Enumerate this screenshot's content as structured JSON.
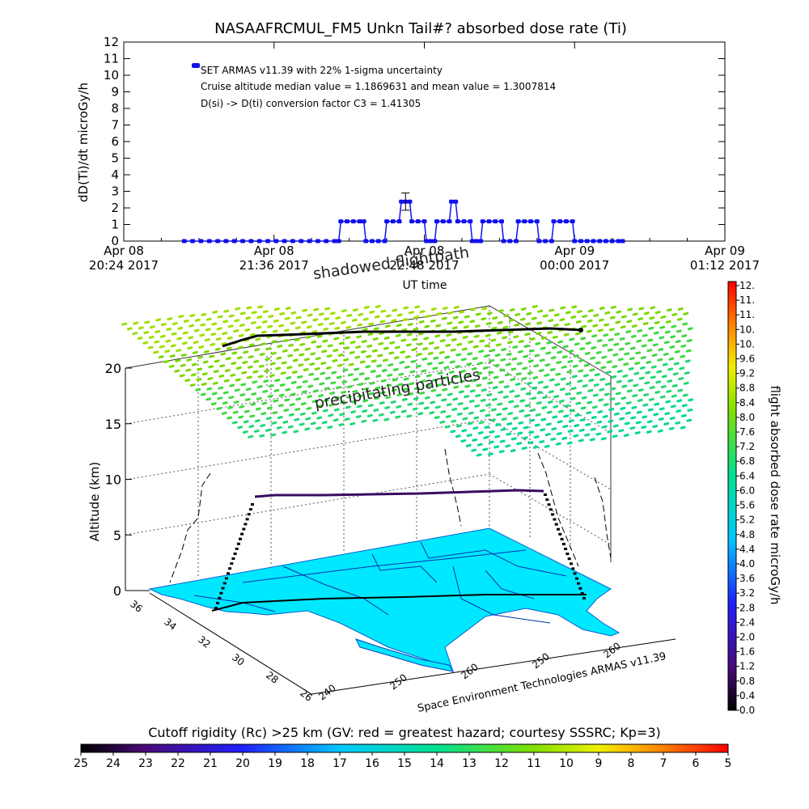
{
  "chart_data": [
    {
      "type": "line",
      "title": "NASAAFRCMUL_FM5 Unkn Tail#? absorbed dose rate (Ti)",
      "xlabel": "UT time",
      "ylabel": "dD(Ti)/dt microGy/h",
      "ylim": [
        0,
        12
      ],
      "yticks": [
        "0",
        "1",
        "2",
        "3",
        "4",
        "5",
        "6",
        "7",
        "8",
        "9",
        "10",
        "11",
        "12"
      ],
      "xticks": [
        {
          "t": 0,
          "line1": "Apr 08",
          "line2": "20:24 2017"
        },
        {
          "t": 72,
          "line1": "Apr 08",
          "line2": "21:36 2017"
        },
        {
          "t": 144,
          "line1": "Apr 08",
          "line2": "22:48 2017"
        },
        {
          "t": 216,
          "line1": "Apr 09",
          "line2": "00:00 2017"
        },
        {
          "t": 288,
          "line1": "Apr 09",
          "line2": "01:12 2017"
        }
      ],
      "xlim_minutes": [
        0,
        288
      ],
      "annotations": [
        "SET ARMAS v11.39 with 22% 1-sigma uncertainty",
        "Cruise altitude median value = 1.1869631 and mean value = 1.3007814",
        "D(si) -> D(ti) conversion factor C3 = 1.41305"
      ],
      "legend_color": "#1010ee",
      "series": [
        {
          "color": "#1010ee",
          "points": [
            [
              29,
              0
            ],
            [
              33,
              0
            ],
            [
              37,
              0
            ],
            [
              41,
              0
            ],
            [
              45,
              0
            ],
            [
              49,
              0
            ],
            [
              53,
              0
            ],
            [
              57,
              0
            ],
            [
              61,
              0
            ],
            [
              65,
              0
            ],
            [
              69,
              0
            ],
            [
              73,
              0
            ],
            [
              77,
              0
            ],
            [
              81,
              0
            ],
            [
              85,
              0
            ],
            [
              89,
              0
            ],
            [
              93,
              0
            ],
            [
              97,
              0
            ],
            [
              101,
              0
            ],
            [
              103,
              0
            ],
            [
              104,
              1.19
            ],
            [
              107,
              1.19
            ],
            [
              110,
              1.19
            ],
            [
              113,
              1.19
            ],
            [
              115,
              1.19
            ],
            [
              116,
              0
            ],
            [
              119,
              0
            ],
            [
              122,
              0
            ],
            [
              125,
              0
            ],
            [
              126,
              1.19
            ],
            [
              129,
              1.19
            ],
            [
              132,
              1.19
            ],
            [
              133,
              2.38
            ],
            [
              135,
              2.38
            ],
            [
              137,
              2.38
            ],
            [
              138,
              1.19
            ],
            [
              141,
              1.19
            ],
            [
              144,
              1.19
            ],
            [
              145,
              0
            ],
            [
              147,
              0
            ],
            [
              149,
              0
            ],
            [
              150,
              1.19
            ],
            [
              153,
              1.19
            ],
            [
              156,
              1.19
            ],
            [
              157,
              2.38
            ],
            [
              159,
              2.38
            ],
            [
              160,
              1.19
            ],
            [
              163,
              1.19
            ],
            [
              166,
              1.19
            ],
            [
              167,
              0
            ],
            [
              169,
              0
            ],
            [
              171,
              0
            ],
            [
              172,
              1.19
            ],
            [
              175,
              1.19
            ],
            [
              178,
              1.19
            ],
            [
              181,
              1.19
            ],
            [
              182,
              0
            ],
            [
              185,
              0
            ],
            [
              188,
              0
            ],
            [
              189,
              1.19
            ],
            [
              192,
              1.19
            ],
            [
              195,
              1.19
            ],
            [
              198,
              1.19
            ],
            [
              199,
              0
            ],
            [
              202,
              0
            ],
            [
              205,
              0
            ],
            [
              206,
              1.19
            ],
            [
              209,
              1.19
            ],
            [
              212,
              1.19
            ],
            [
              215,
              1.19
            ],
            [
              216,
              0
            ],
            [
              219,
              0
            ],
            [
              222,
              0
            ],
            [
              225,
              0
            ],
            [
              228,
              0
            ],
            [
              231,
              0
            ],
            [
              234,
              0
            ],
            [
              237,
              0
            ],
            [
              239,
              0
            ]
          ],
          "error_bar": {
            "t": 135,
            "low": 1.86,
            "high": 2.9
          }
        }
      ]
    },
    {
      "type": "scatter",
      "subtype": "3d-flight-path",
      "zlabel": "Altitude (km)",
      "zticks": [
        "0",
        "5",
        "10",
        "15",
        "20"
      ],
      "zlim": [
        0,
        20
      ],
      "lat_ticks": [
        "36",
        "34",
        "32",
        "30",
        "28",
        "26"
      ],
      "lon_ticks": [
        "240",
        "250",
        "260",
        "250",
        "260"
      ],
      "annotations": {
        "top": "shadowed flightpath",
        "mid": "precipitating particles",
        "credit": "Space Environment Technologies ARMAS v11.39"
      },
      "surface_color": "#00e8ff",
      "flight_path_color": "#000000"
    }
  ],
  "colorbar_right": {
    "label": "flight absorbed dose rate microGy/h",
    "ticks": [
      "12.",
      "11.",
      "11.",
      "10.",
      "10.",
      "9.6",
      "9.2",
      "8.8",
      "8.4",
      "8.0",
      "7.6",
      "7.2",
      "6.8",
      "6.4",
      "6.0",
      "5.6",
      "5.2",
      "4.8",
      "4.4",
      "4.0",
      "3.6",
      "3.2",
      "2.8",
      "2.4",
      "2.0",
      "1.6",
      "1.2",
      "0.8",
      "0.4",
      "0.0"
    ]
  },
  "colorbar_bottom": {
    "label": "Cutoff rigidity (Rc) >25 km (GV: red = greatest hazard; courtesy SSSRC; Kp=3)",
    "ticks": [
      "25",
      "24",
      "23",
      "22",
      "21",
      "20",
      "19",
      "18",
      "17",
      "16",
      "15",
      "14",
      "13",
      "12",
      "11",
      "10",
      "9",
      "8",
      "7",
      "6",
      "5"
    ]
  }
}
